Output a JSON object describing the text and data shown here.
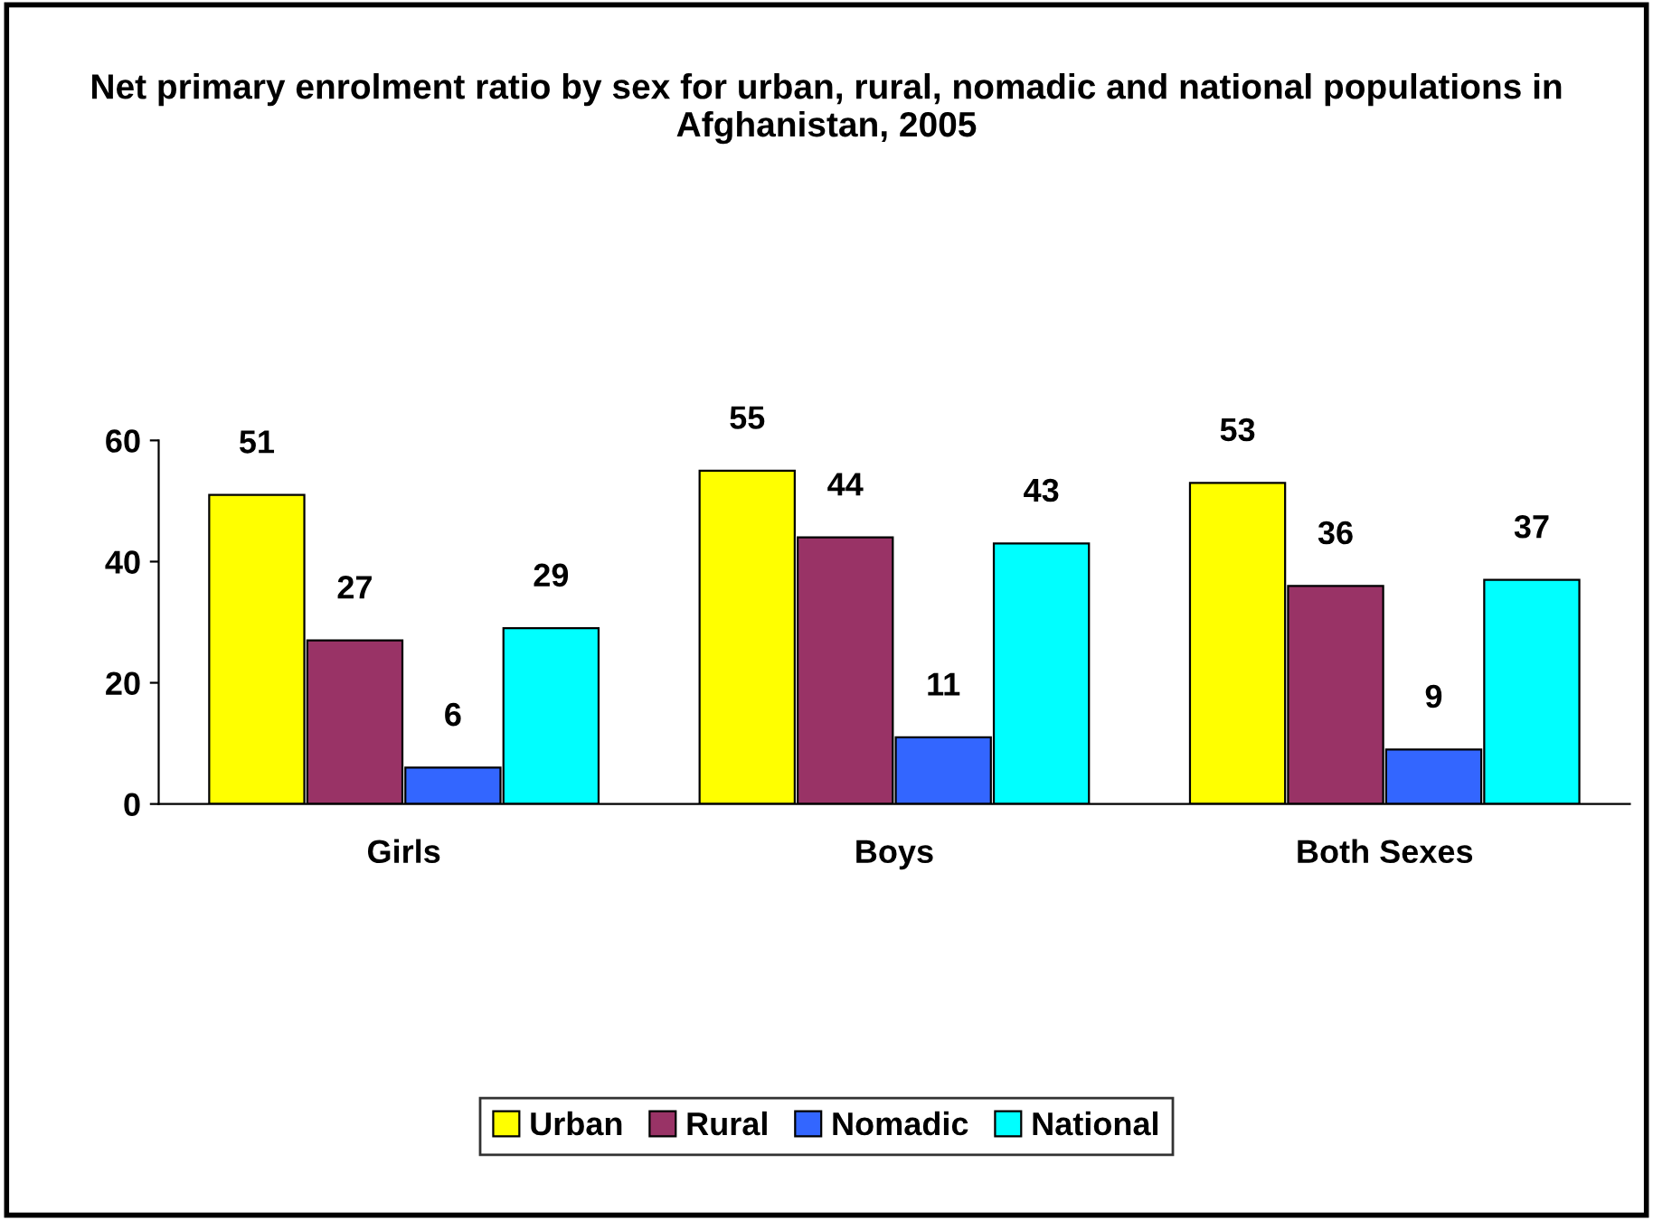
{
  "chart_data": {
    "type": "bar",
    "title": "Net primary enrolment ratio by sex for urban, rural, nomadic and national populations in Afghanistan, 2005",
    "categories": [
      "Girls",
      "Boys",
      "Both Sexes"
    ],
    "series": [
      {
        "name": "Urban",
        "color": "#ffff00",
        "values": [
          51,
          55,
          53
        ]
      },
      {
        "name": "Rural",
        "color": "#993366",
        "values": [
          27,
          44,
          36
        ]
      },
      {
        "name": "Nomadic",
        "color": "#3366ff",
        "values": [
          6,
          11,
          9
        ]
      },
      {
        "name": "National",
        "color": "#00ffff",
        "values": [
          29,
          43,
          37
        ]
      }
    ],
    "ylim": [
      0,
      60
    ],
    "yticks": [
      0,
      20,
      40,
      60
    ],
    "grid": false,
    "legend": "bottom",
    "data_labels": true
  }
}
